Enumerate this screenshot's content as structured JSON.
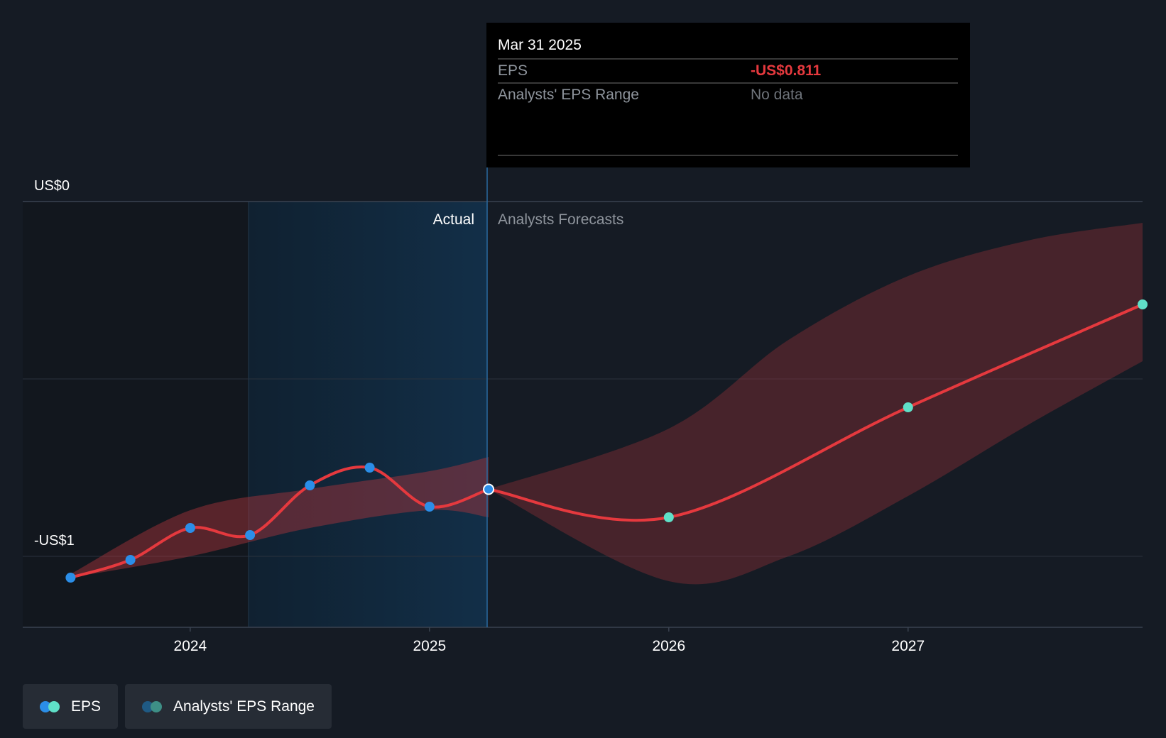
{
  "tooltip": {
    "date": "Mar 31 2025",
    "eps_label": "EPS",
    "eps_value": "-US$0.811",
    "range_label": "Analysts' EPS Range",
    "range_value": "No data"
  },
  "labels": {
    "actual": "Actual",
    "forecast": "Analysts Forecasts"
  },
  "legend": {
    "eps": "EPS",
    "range": "Analysts' EPS Range"
  },
  "colors": {
    "background": "#151b24",
    "line": "#e5393e",
    "actual_point": "#2b8ee8",
    "forecast_point": "#5fe0c8",
    "negative_value": "#e5393e",
    "band": "#b0353c"
  },
  "chart_data": {
    "type": "line",
    "xlim": [
      2023.3,
      2027.98
    ],
    "ylim": [
      -1.2,
      0
    ],
    "y_ticks": [
      {
        "value": 0,
        "label": "US$0"
      },
      {
        "value": -1,
        "label": "-US$1"
      }
    ],
    "x_ticks": [
      {
        "value": 2024,
        "label": "2024"
      },
      {
        "value": 2025,
        "label": "2025"
      },
      {
        "value": 2026,
        "label": "2026"
      },
      {
        "value": 2027,
        "label": "2027"
      }
    ],
    "grid": true,
    "actual_end": 2025.247,
    "highlight_start": 2024.25,
    "series": [
      {
        "name": "EPS",
        "kind": "actual",
        "points": [
          {
            "x": 2023.5,
            "y": -1.06
          },
          {
            "x": 2023.75,
            "y": -1.01
          },
          {
            "x": 2024.0,
            "y": -0.92
          },
          {
            "x": 2024.25,
            "y": -0.94
          },
          {
            "x": 2024.5,
            "y": -0.8
          },
          {
            "x": 2024.75,
            "y": -0.75
          },
          {
            "x": 2025.0,
            "y": -0.86
          },
          {
            "x": 2025.247,
            "y": -0.811
          }
        ]
      },
      {
        "name": "EPS",
        "kind": "forecast",
        "points": [
          {
            "x": 2025.247,
            "y": -0.811
          },
          {
            "x": 2026.0,
            "y": -0.89
          },
          {
            "x": 2027.0,
            "y": -0.58
          },
          {
            "x": 2027.98,
            "y": -0.29
          }
        ]
      }
    ],
    "range_band": {
      "name": "Analysts' EPS Range",
      "actual": {
        "x": [
          2023.5,
          2024.0,
          2024.5,
          2025.0,
          2025.247
        ],
        "low": [
          -1.06,
          -1.0,
          -0.92,
          -0.87,
          -0.89
        ],
        "high": [
          -1.05,
          -0.87,
          -0.81,
          -0.76,
          -0.72
        ]
      },
      "forecast": {
        "x": [
          2025.247,
          2026.0,
          2026.5,
          2027.0,
          2027.5,
          2027.98
        ],
        "low": [
          -0.811,
          -1.07,
          -1.0,
          -0.83,
          -0.63,
          -0.45
        ],
        "high": [
          -0.811,
          -0.64,
          -0.39,
          -0.21,
          -0.11,
          -0.06
        ]
      }
    }
  }
}
